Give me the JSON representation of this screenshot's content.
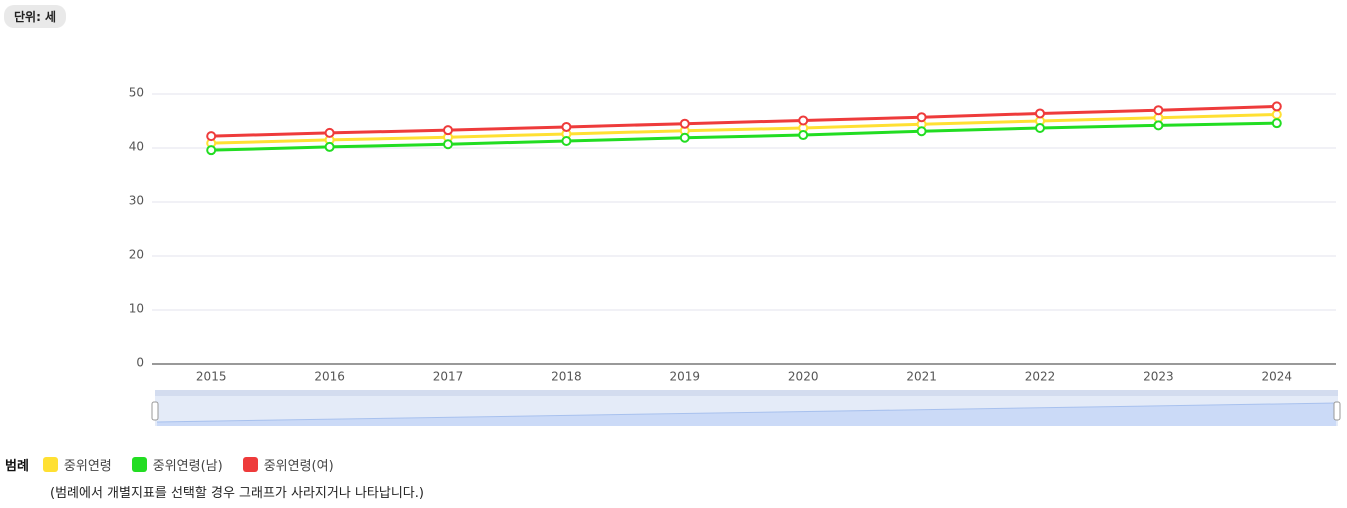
{
  "unit_badge": "단위: 세",
  "chart_data": {
    "type": "line",
    "categories": [
      "2015",
      "2016",
      "2017",
      "2018",
      "2019",
      "2020",
      "2021",
      "2022",
      "2023",
      "2024"
    ],
    "series": [
      {
        "name": "중위연령",
        "color": "#ffe033",
        "values": [
          40.9,
          41.5,
          42.0,
          42.6,
          43.2,
          43.7,
          44.4,
          45.0,
          45.6,
          46.2
        ]
      },
      {
        "name": "중위연령(남)",
        "color": "#22dd22",
        "values": [
          39.6,
          40.2,
          40.7,
          41.3,
          41.9,
          42.4,
          43.1,
          43.7,
          44.2,
          44.6
        ]
      },
      {
        "name": "중위연령(여)",
        "color": "#ee3b3b",
        "values": [
          42.2,
          42.8,
          43.3,
          43.9,
          44.5,
          45.1,
          45.7,
          46.4,
          47.0,
          47.7
        ]
      }
    ],
    "ylim": [
      0,
      50
    ],
    "yticks": [
      0,
      10,
      20,
      30,
      40,
      50
    ],
    "grid": true
  },
  "legend": {
    "title": "범례",
    "note": "(범례에서 개별지표를 선택할 경우 그래프가 사라지거나 나타납니다.)"
  }
}
